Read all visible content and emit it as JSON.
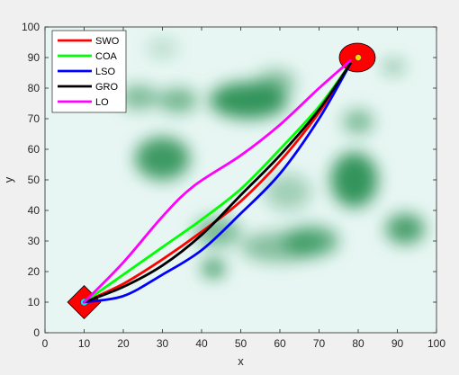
{
  "chart_data": {
    "type": "line",
    "title": "",
    "xlabel": "x",
    "ylabel": "y",
    "xlim": [
      0,
      100
    ],
    "ylim": [
      0,
      100
    ],
    "xticks": [
      0,
      10,
      20,
      30,
      40,
      50,
      60,
      70,
      80,
      90,
      100
    ],
    "yticks": [
      0,
      10,
      20,
      30,
      40,
      50,
      60,
      70,
      80,
      90,
      100
    ],
    "legend_placement": "top-left",
    "background_color": "#e8f6f3",
    "obstacle_color": "#1e8a4a",
    "obstacles": [
      {
        "x": 30,
        "y": 57,
        "rx": 7,
        "ry": 7,
        "strength": 0.85
      },
      {
        "x": 24,
        "y": 77,
        "rx": 5,
        "ry": 4,
        "strength": 0.55
      },
      {
        "x": 34,
        "y": 76,
        "rx": 5,
        "ry": 4,
        "strength": 0.6
      },
      {
        "x": 52,
        "y": 76,
        "rx": 10,
        "ry": 6,
        "strength": 0.9
      },
      {
        "x": 59,
        "y": 82,
        "rx": 5,
        "ry": 4,
        "strength": 0.5
      },
      {
        "x": 80,
        "y": 69,
        "rx": 4,
        "ry": 4,
        "strength": 0.55
      },
      {
        "x": 79,
        "y": 50,
        "rx": 6,
        "ry": 9,
        "strength": 0.9
      },
      {
        "x": 92,
        "y": 34,
        "rx": 5,
        "ry": 5,
        "strength": 0.8
      },
      {
        "x": 68,
        "y": 30,
        "rx": 7,
        "ry": 5,
        "strength": 0.7
      },
      {
        "x": 60,
        "y": 28,
        "rx": 10,
        "ry": 5,
        "strength": 0.5
      },
      {
        "x": 44,
        "y": 33,
        "rx": 6,
        "ry": 5,
        "strength": 0.55
      },
      {
        "x": 43,
        "y": 21,
        "rx": 3,
        "ry": 3,
        "strength": 0.85
      },
      {
        "x": 89,
        "y": 87,
        "rx": 3,
        "ry": 2.5,
        "strength": 0.45
      },
      {
        "x": 62,
        "y": 46,
        "rx": 6,
        "ry": 6,
        "strength": 0.35
      },
      {
        "x": 30,
        "y": 93,
        "rx": 4,
        "ry": 3,
        "strength": 0.25
      }
    ],
    "start": {
      "x": 10,
      "y": 10,
      "color": "#ff0000"
    },
    "goal": {
      "x": 80,
      "y": 90,
      "color": "#ff0000"
    },
    "series": [
      {
        "name": "SWO",
        "color": "#ff0000",
        "x": [
          10,
          20,
          30,
          40,
          50,
          60,
          70,
          78
        ],
        "y": [
          10,
          16,
          24,
          33,
          43,
          56,
          72,
          88
        ]
      },
      {
        "name": "COA",
        "color": "#00ff00",
        "x": [
          10,
          20,
          30,
          40,
          50,
          60,
          70,
          78
        ],
        "y": [
          10,
          19,
          28,
          37,
          47,
          60,
          74,
          88
        ]
      },
      {
        "name": "LSO",
        "color": "#0000ff",
        "x": [
          10,
          20,
          30,
          40,
          50,
          60,
          70,
          78
        ],
        "y": [
          10,
          12,
          19,
          27,
          39,
          52,
          70,
          88
        ]
      },
      {
        "name": "GRO",
        "color": "#000000",
        "x": [
          10,
          20,
          30,
          40,
          50,
          60,
          70,
          78
        ],
        "y": [
          10,
          15,
          22,
          32,
          45,
          58,
          73,
          88
        ]
      },
      {
        "name": "LO",
        "color": "#ff00ff",
        "x": [
          10,
          20,
          30,
          38,
          50,
          60,
          70,
          78
        ],
        "y": [
          10,
          23,
          38,
          48,
          58,
          68,
          80,
          89
        ]
      }
    ]
  }
}
